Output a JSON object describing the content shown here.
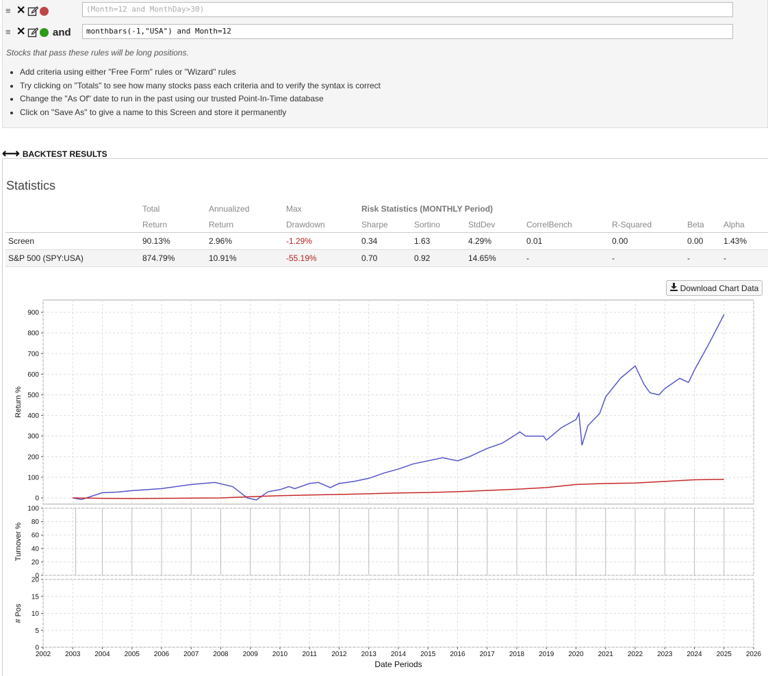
{
  "rules": [
    {
      "drag_icon": "≡",
      "delete_icon": "✕",
      "edit_icon": "✎",
      "status_color": "#c04545",
      "connector": "",
      "expression": "(Month=12 and MonthDay>30)",
      "enabled": false
    },
    {
      "drag_icon": "≡",
      "delete_icon": "✕",
      "edit_icon": "✎",
      "status_color": "#2e9a18",
      "connector": "and",
      "expression": "monthbars(-1,\"USA\") and Month=12",
      "enabled": true
    }
  ],
  "hint": "Stocks that pass these rules will be long positions.",
  "tips": [
    "Add criteria using either \"Free Form\" rules or \"Wizard\" rules",
    "Try clicking on \"Totals\" to see how many stocks pass each criteria and to verify the syntax is correct",
    "Change the \"As Of\" date to run in the past using our trusted Point-In-Time database",
    "Click on \"Save As\" to give a name to this Screen and store it permanently"
  ],
  "backtest": {
    "arrows": "⟷",
    "title": "BACKTEST RESULTS"
  },
  "statistics": {
    "title": "Statistics",
    "headers_top": [
      "Total",
      "Annualized",
      "Max",
      "Risk Statistics (MONTHLY Period)"
    ],
    "headers": [
      "Return",
      "Return",
      "Drawdown",
      "Sharpe",
      "Sortino",
      "StdDev",
      "CorrelBench",
      "R-Squared",
      "Beta",
      "Alpha"
    ],
    "rows": [
      {
        "name": "Screen",
        "values": [
          "90.13%",
          "2.96%",
          "-1.29%",
          "0.34",
          "1.63",
          "4.29%",
          "0.01",
          "0.00",
          "0.00",
          "1.43%"
        ]
      },
      {
        "name": "S&P 500 (SPY:USA)",
        "values": [
          "874.79%",
          "10.91%",
          "-55.19%",
          "0.70",
          "0.92",
          "14.65%",
          "-",
          "-",
          "-",
          "-"
        ]
      }
    ]
  },
  "download_button": {
    "icon": "download-icon",
    "label": "Download Chart Data"
  },
  "colors": {
    "screen": "#c62828",
    "benchmark": "#5555cc",
    "grid": "#dddddd"
  },
  "chart_data": [
    {
      "type": "line",
      "ylabel": "Return %",
      "ylim": [
        -30,
        960
      ],
      "yticks": [
        0,
        100,
        200,
        300,
        400,
        500,
        600,
        700,
        800,
        900
      ],
      "series": [
        {
          "name": "S&P 500 (SPY:USA)",
          "color": "#5555cc",
          "x": [
            2003.0,
            2003.3,
            2004.0,
            2004.5,
            2005.0,
            2006.0,
            2007.0,
            2007.8,
            2008.4,
            2008.9,
            2009.2,
            2009.6,
            2010.0,
            2010.3,
            2010.5,
            2011.0,
            2011.3,
            2011.7,
            2012.0,
            2012.5,
            2013.0,
            2013.5,
            2014.0,
            2014.5,
            2015.0,
            2015.5,
            2016.0,
            2016.4,
            2017.0,
            2017.5,
            2018.0,
            2018.1,
            2018.3,
            2018.9,
            2019.0,
            2019.5,
            2020.0,
            2020.1,
            2020.2,
            2020.4,
            2020.8,
            2021.0,
            2021.5,
            2022.0,
            2022.3,
            2022.5,
            2022.8,
            2023.0,
            2023.5,
            2023.8,
            2024.0,
            2024.5,
            2025.0
          ],
          "values": [
            0,
            -8,
            25,
            28,
            35,
            45,
            65,
            75,
            55,
            0,
            -10,
            30,
            40,
            55,
            45,
            70,
            75,
            50,
            70,
            80,
            95,
            120,
            140,
            165,
            180,
            195,
            180,
            200,
            240,
            265,
            310,
            320,
            300,
            300,
            280,
            340,
            380,
            410,
            255,
            350,
            410,
            490,
            580,
            640,
            550,
            510,
            500,
            530,
            580,
            560,
            620,
            750,
            890
          ]
        },
        {
          "name": "Screen",
          "color": "#c62828",
          "x": [
            2003.0,
            2004.0,
            2005.0,
            2006.0,
            2007.0,
            2008.0,
            2009.0,
            2010.0,
            2011.0,
            2012.0,
            2013.0,
            2014.0,
            2015.0,
            2016.0,
            2017.0,
            2018.0,
            2019.0,
            2020.0,
            2021.0,
            2022.0,
            2023.0,
            2024.0,
            2025.0
          ],
          "values": [
            0,
            -2,
            -3,
            -2,
            -1,
            0,
            6,
            11,
            14,
            17,
            20,
            24,
            26,
            30,
            36,
            42,
            50,
            65,
            70,
            72,
            80,
            88,
            90
          ]
        }
      ]
    },
    {
      "type": "bar",
      "ylabel": "Turnover %",
      "ylim": [
        0,
        100
      ],
      "yticks": [
        0,
        20,
        40,
        60,
        80,
        100
      ],
      "x": [
        2003.1,
        2004.0,
        2005.0,
        2006.0,
        2007.0,
        2008.0,
        2009.0,
        2010.0,
        2011.0,
        2012.0,
        2013.0,
        2014.0,
        2015.0,
        2016.0,
        2017.0,
        2018.0,
        2019.0,
        2020.0,
        2021.0,
        2022.0,
        2023.0,
        2024.0,
        2025.0
      ],
      "values": [
        100,
        100,
        100,
        100,
        100,
        100,
        100,
        100,
        100,
        100,
        100,
        100,
        100,
        100,
        100,
        100,
        100,
        100,
        100,
        100,
        100,
        100,
        100
      ]
    },
    {
      "type": "bar",
      "ylabel": "# Pos",
      "xlabel": "Date Periods",
      "ylim": [
        0,
        20
      ],
      "yticks": [
        0,
        5,
        10,
        15,
        20
      ],
      "xlim": [
        2002,
        2026
      ],
      "xticks": [
        "2002",
        "2003",
        "2004",
        "2005",
        "2006",
        "2007",
        "2008",
        "2009",
        "2010",
        "2011",
        "2012",
        "2013",
        "2014",
        "2015",
        "2016",
        "2017",
        "2018",
        "2019",
        "2020",
        "2021",
        "2022",
        "2023",
        "2024",
        "2025",
        "2026"
      ],
      "values": []
    }
  ]
}
